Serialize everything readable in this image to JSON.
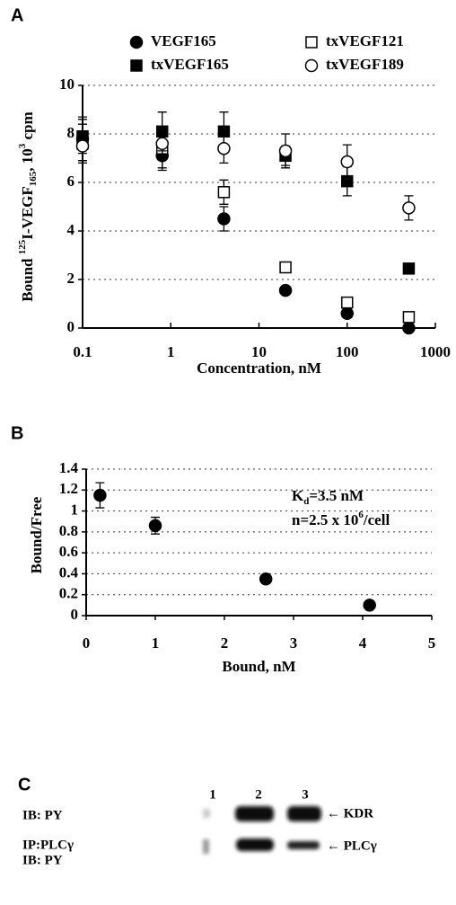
{
  "chart_data": [
    {
      "type": "scatter",
      "panel": "A",
      "xlog": true,
      "grid": true,
      "x_label": [
        {
          "text": "Concentration, nM"
        }
      ],
      "y_label": [
        {
          "text": "Bound "
        },
        {
          "text": "125",
          "pos": "sup"
        },
        {
          "text": "I-VEGF"
        },
        {
          "text": "165",
          "pos": "sub"
        },
        {
          "text": ", 10"
        },
        {
          "text": "3",
          "pos": "sup"
        },
        {
          "text": " cpm"
        }
      ],
      "xlim": [
        0.1,
        1000
      ],
      "xticks": [
        0.1,
        1,
        10,
        100,
        1000
      ],
      "ylim": [
        0,
        10
      ],
      "yticks": [
        0,
        2,
        4,
        6,
        8,
        10
      ],
      "x": [
        0.1,
        0.8,
        4,
        20,
        100,
        500
      ],
      "series": [
        {
          "name": "VEGF165",
          "color": "#000000",
          "marker": "circle",
          "filled": true,
          "values": [
            7.8,
            7.1,
            4.5,
            1.55,
            0.6,
            0.0
          ],
          "errors": [
            0.9,
            0.6,
            0.5,
            0.1,
            0.1,
            0.1
          ]
        },
        {
          "name": "txVEGF121",
          "color": "#000000",
          "marker": "square",
          "filled": false,
          "values": [
            7.6,
            7.4,
            5.6,
            2.5,
            1.05,
            0.45
          ],
          "errors": [
            0.8,
            0.8,
            0.5,
            0.1,
            0.1,
            0.1
          ]
        },
        {
          "name": "txVEGF165",
          "color": "#000000",
          "marker": "square",
          "filled": true,
          "values": [
            7.9,
            8.1,
            8.1,
            7.1,
            6.05,
            2.45
          ],
          "errors": [
            0.7,
            0.8,
            0.8,
            0.4,
            0.6,
            0.1
          ]
        },
        {
          "name": "txVEGF189",
          "color": "#000000",
          "marker": "circle",
          "filled": false,
          "values": [
            7.5,
            7.6,
            7.4,
            7.3,
            6.85,
            4.95
          ],
          "errors": [
            0.6,
            0.6,
            0.6,
            0.7,
            0.7,
            0.5
          ]
        }
      ]
    },
    {
      "type": "scatter",
      "panel": "B",
      "xlog": false,
      "grid": true,
      "x_label": [
        {
          "text": "Bound, nM"
        }
      ],
      "y_label": [
        {
          "text": "Bound/Free"
        }
      ],
      "xlim": [
        0,
        5
      ],
      "xticks": [
        0,
        1,
        2,
        3,
        4,
        5
      ],
      "ylim": [
        0,
        1.4
      ],
      "yticks": [
        0,
        0.2,
        0.4,
        0.6,
        0.8,
        1,
        1.2,
        1.4
      ],
      "x": [
        0.2,
        1.0,
        2.6,
        4.1
      ],
      "series": [
        {
          "name": null,
          "color": "#000000",
          "marker": "circle",
          "filled": true,
          "values": [
            1.15,
            0.86,
            0.35,
            0.1
          ],
          "errors": [
            0.12,
            0.08,
            0.03,
            0.01
          ]
        }
      ],
      "annotations": [
        [
          {
            "text": "K"
          },
          {
            "text": "d",
            "pos": "sub"
          },
          {
            "text": "=3.5 nM"
          }
        ],
        [
          {
            "text": "n=2.5 x 10"
          },
          {
            "text": "6",
            "pos": "sup"
          },
          {
            "text": "/cell"
          }
        ]
      ]
    }
  ],
  "panel_c": {
    "label": "C",
    "lanes": [
      "1",
      "2",
      "3"
    ],
    "rows": [
      {
        "labels": [
          "IB: PY"
        ],
        "target": "← KDR"
      },
      {
        "labels": [
          "IP:PLCγ",
          "IB: PY"
        ],
        "target": "← PLCγ"
      }
    ]
  }
}
